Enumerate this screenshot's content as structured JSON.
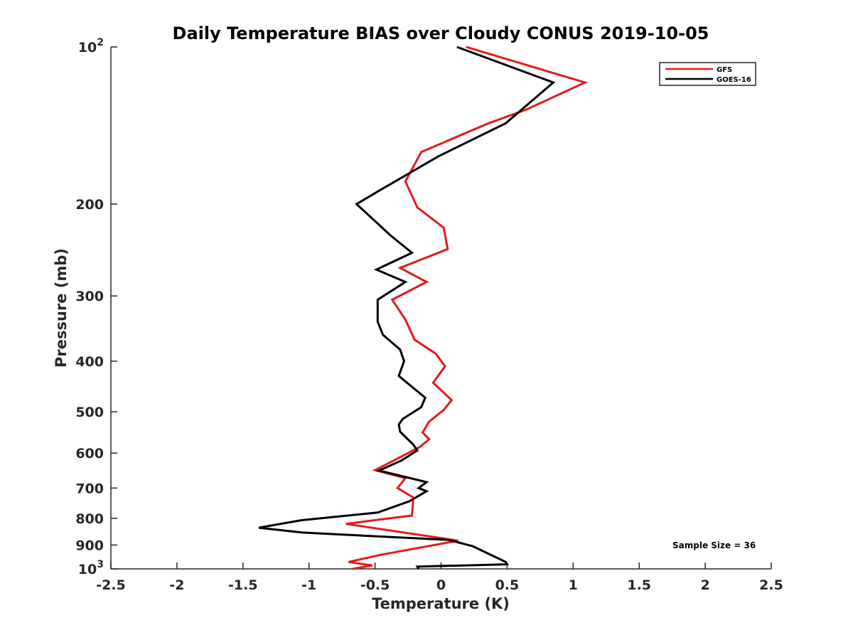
{
  "chart_data": {
    "type": "line",
    "title": "Daily Temperature BIAS over Cloudy CONUS 2019-10-05",
    "xlabel": "Temperature (K)",
    "ylabel": "Pressure (mb)",
    "xlim": [
      -2.5,
      2.5
    ],
    "ylim": [
      100,
      1000
    ],
    "y_scale": "log",
    "y_reversed": true,
    "grid": false,
    "legend_position": "top-right",
    "x_ticks": [
      "-2.5",
      "-2",
      "-1.5",
      "-1",
      "-0.5",
      "0",
      "0.5",
      "1",
      "1.5",
      "2",
      "2.5"
    ],
    "y_ticks": [
      {
        "value": 100,
        "base": "10",
        "exp": "2"
      },
      {
        "value": 200,
        "label": "200"
      },
      {
        "value": 300,
        "label": "300"
      },
      {
        "value": 400,
        "label": "400"
      },
      {
        "value": 500,
        "label": "500"
      },
      {
        "value": 600,
        "label": "600"
      },
      {
        "value": 700,
        "label": "700"
      },
      {
        "value": 800,
        "label": "800"
      },
      {
        "value": 900,
        "label": "900"
      },
      {
        "value": 1000,
        "base": "10",
        "exp": "3"
      }
    ],
    "annotation": "Sample Size = 36",
    "series": [
      {
        "name": "GFS",
        "color": "#e31a1c",
        "points": [
          [
            0.19,
            100
          ],
          [
            1.09,
            117
          ],
          [
            0.64,
            132
          ],
          [
            0.36,
            140
          ],
          [
            -0.15,
            159
          ],
          [
            -0.27,
            181
          ],
          [
            -0.18,
            203
          ],
          [
            0.02,
            222
          ],
          [
            0.05,
            244
          ],
          [
            -0.31,
            265
          ],
          [
            -0.11,
            282
          ],
          [
            -0.37,
            305
          ],
          [
            -0.27,
            333
          ],
          [
            -0.2,
            364
          ],
          [
            -0.04,
            387
          ],
          [
            0.03,
            409
          ],
          [
            -0.06,
            440
          ],
          [
            0.08,
            475
          ],
          [
            0.02,
            496
          ],
          [
            -0.09,
            522
          ],
          [
            -0.14,
            548
          ],
          [
            -0.09,
            564
          ],
          [
            -0.16,
            584
          ],
          [
            -0.5,
            647
          ],
          [
            -0.27,
            670
          ],
          [
            -0.33,
            700
          ],
          [
            -0.21,
            730
          ],
          [
            -0.22,
            790
          ],
          [
            -0.72,
            820
          ],
          [
            0.13,
            883
          ],
          [
            -0.46,
            940
          ],
          [
            -0.7,
            970
          ],
          [
            -0.52,
            985
          ],
          [
            -0.67,
            1000
          ]
        ]
      },
      {
        "name": "GOES-16",
        "color": "#000000",
        "points": [
          [
            0.12,
            100
          ],
          [
            0.85,
            117
          ],
          [
            0.49,
            140
          ],
          [
            -0.02,
            162
          ],
          [
            -0.46,
            188
          ],
          [
            -0.64,
            200
          ],
          [
            -0.38,
            230
          ],
          [
            -0.22,
            248
          ],
          [
            -0.49,
            267
          ],
          [
            -0.27,
            282
          ],
          [
            -0.48,
            305
          ],
          [
            -0.48,
            336
          ],
          [
            -0.44,
            356
          ],
          [
            -0.31,
            380
          ],
          [
            -0.28,
            400
          ],
          [
            -0.32,
            427
          ],
          [
            -0.12,
            470
          ],
          [
            -0.15,
            490
          ],
          [
            -0.29,
            516
          ],
          [
            -0.32,
            529
          ],
          [
            -0.31,
            546
          ],
          [
            -0.21,
            578
          ],
          [
            -0.18,
            593
          ],
          [
            -0.3,
            620
          ],
          [
            -0.47,
            648
          ],
          [
            -0.11,
            682
          ],
          [
            -0.17,
            700
          ],
          [
            -0.11,
            710
          ],
          [
            -0.24,
            742
          ],
          [
            -0.48,
            780
          ],
          [
            -1.06,
            807
          ],
          [
            -1.38,
            834
          ],
          [
            -1.05,
            852
          ],
          [
            0.06,
            880
          ],
          [
            0.24,
            905
          ],
          [
            0.49,
            970
          ],
          [
            0.5,
            980
          ],
          [
            -0.18,
            990
          ],
          [
            -0.17,
            1000
          ]
        ]
      }
    ]
  }
}
